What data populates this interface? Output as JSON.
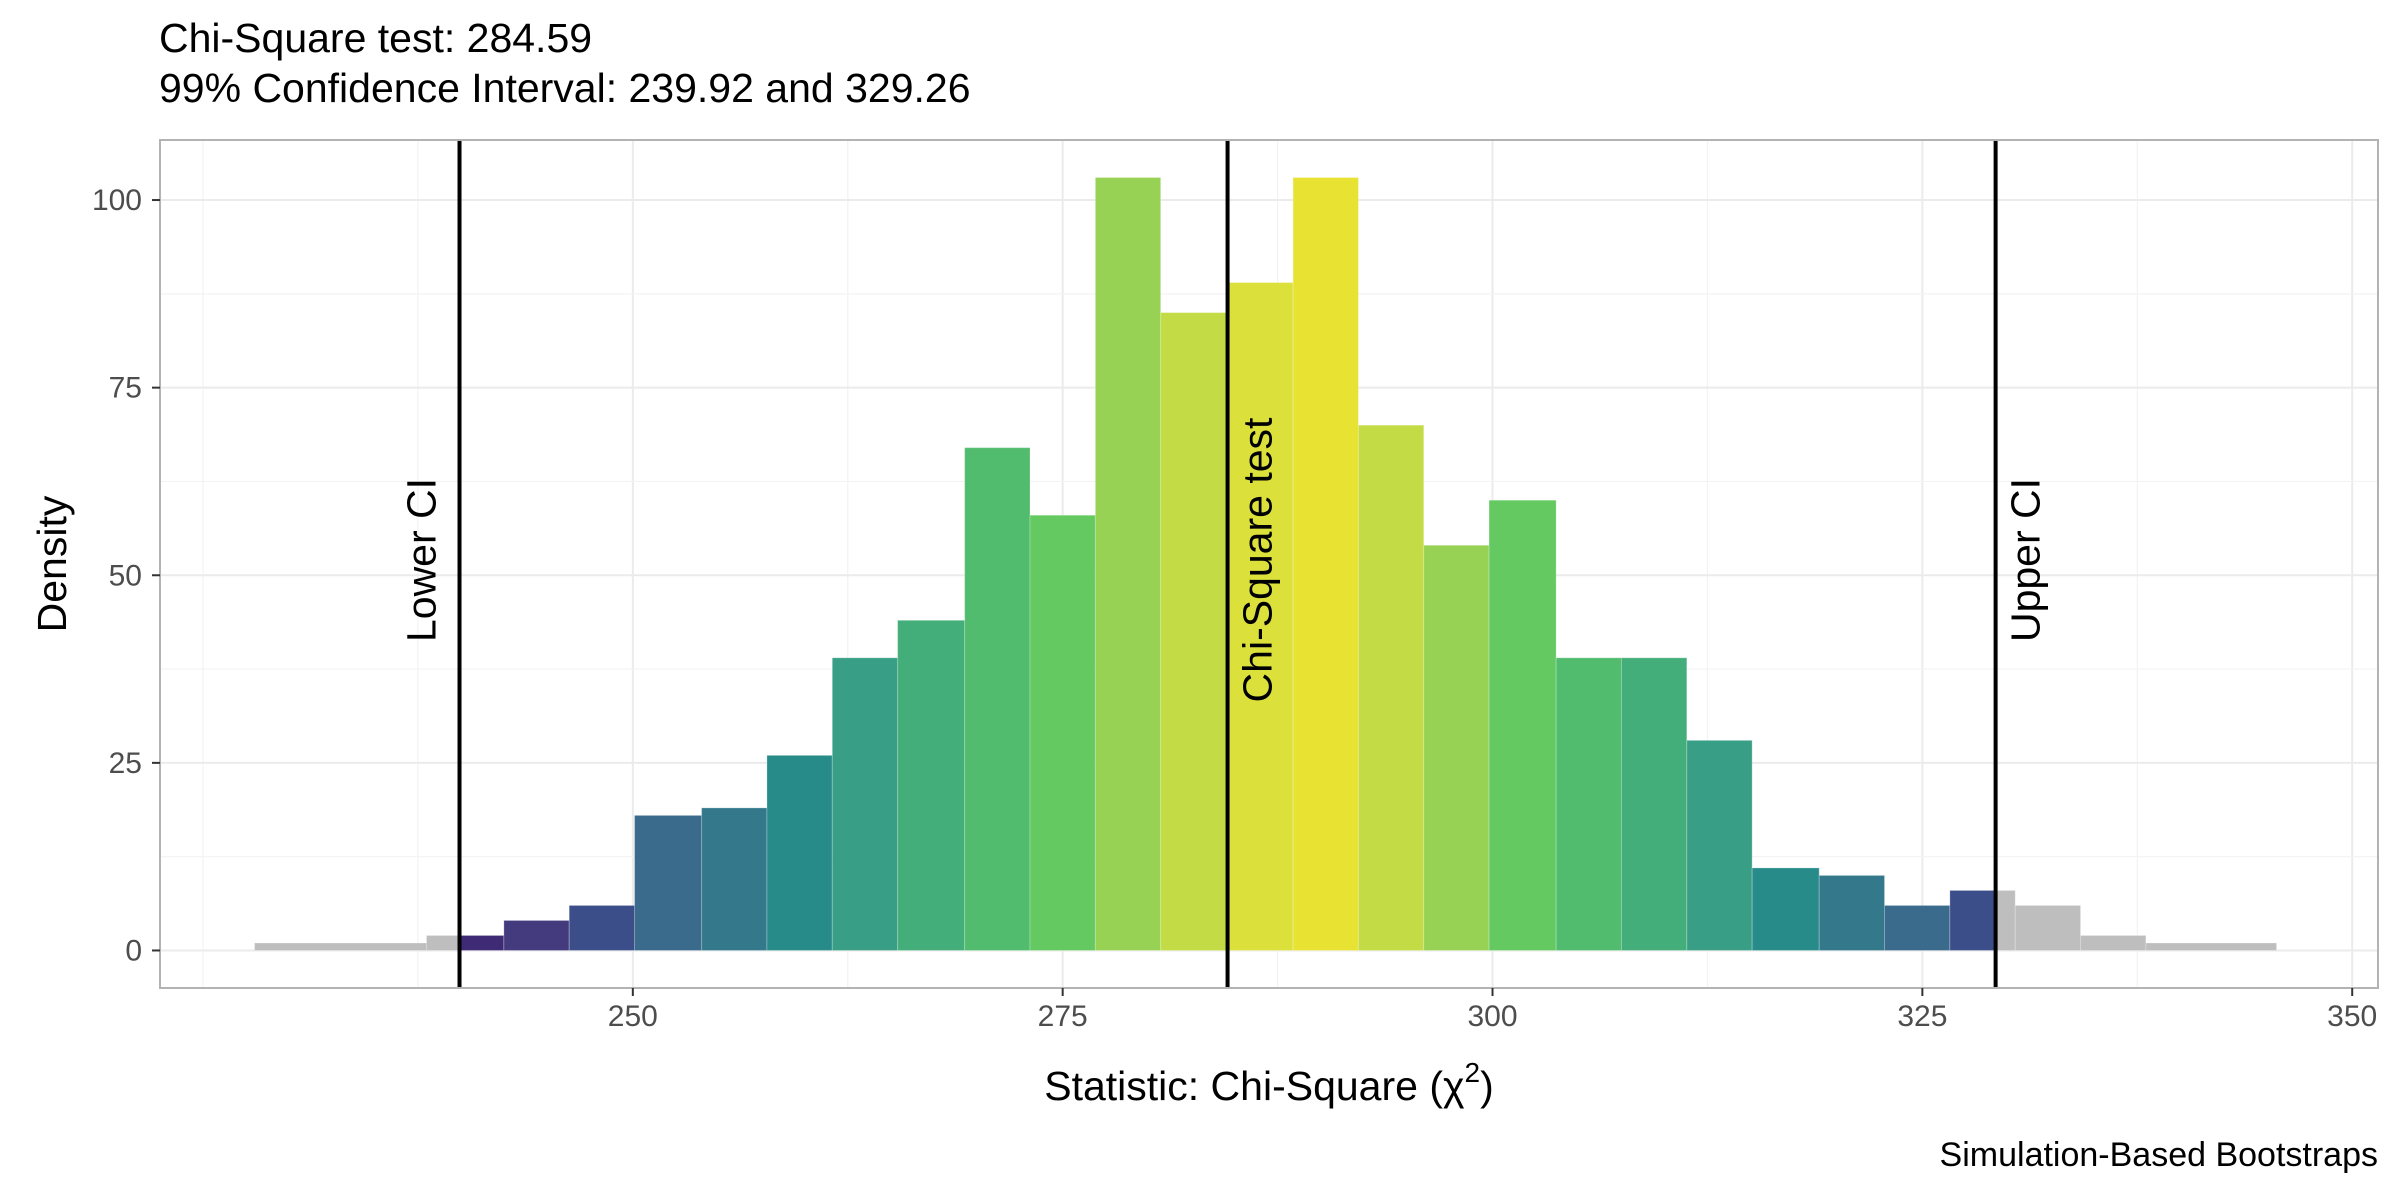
{
  "chart_data": {
    "type": "bar",
    "title": "Chi-Square test: 284.59",
    "subtitle": "99% Confidence Interval: 239.92 and 329.26",
    "caption": "Simulation-Based Bootstraps",
    "xlabel_main": "Statistic: Chi-Square (",
    "xlabel_symbol": "χ",
    "xlabel_sup": "2",
    "xlabel_close": ")",
    "ylabel": "Density",
    "xlim": [
      222.5,
      351.5
    ],
    "ylim": [
      -5,
      108
    ],
    "x_ticks": [
      250,
      275,
      300,
      325,
      350
    ],
    "y_ticks": [
      0,
      25,
      50,
      75,
      100
    ],
    "grid": true,
    "bins": [
      {
        "x0": 228.0,
        "x1": 238.0,
        "value": 1,
        "color": "#bebebe"
      },
      {
        "x0": 238.0,
        "x1": 240.0,
        "value": 2,
        "color": "#bebebe"
      },
      {
        "x0": 240.0,
        "x1": 242.5,
        "value": 2,
        "color": "#3e2a75"
      },
      {
        "x0": 242.5,
        "x1": 246.3,
        "value": 4,
        "color": "#433b7e"
      },
      {
        "x0": 246.3,
        "x1": 250.1,
        "value": 6,
        "color": "#3c4e89"
      },
      {
        "x0": 250.1,
        "x1": 254.0,
        "value": 18,
        "color": "#3a6a8c"
      },
      {
        "x0": 254.0,
        "x1": 257.8,
        "value": 19,
        "color": "#33798b"
      },
      {
        "x0": 257.8,
        "x1": 261.6,
        "value": 26,
        "color": "#268b89"
      },
      {
        "x0": 261.6,
        "x1": 265.4,
        "value": 39,
        "color": "#389f86"
      },
      {
        "x0": 265.4,
        "x1": 269.3,
        "value": 44,
        "color": "#44ae7a"
      },
      {
        "x0": 269.3,
        "x1": 273.1,
        "value": 67,
        "color": "#52bc6e"
      },
      {
        "x0": 273.1,
        "x1": 276.9,
        "value": 58,
        "color": "#63c960"
      },
      {
        "x0": 276.9,
        "x1": 280.7,
        "value": 103,
        "color": "#97d254"
      },
      {
        "x0": 280.7,
        "x1": 284.59,
        "value": 85,
        "color": "#c3db45"
      },
      {
        "x0": 284.59,
        "x1": 288.4,
        "value": 89,
        "color": "#dbe03a"
      },
      {
        "x0": 288.4,
        "x1": 292.2,
        "value": 103,
        "color": "#e8e233"
      },
      {
        "x0": 292.2,
        "x1": 296.0,
        "value": 70,
        "color": "#c3db45"
      },
      {
        "x0": 296.0,
        "x1": 299.8,
        "value": 54,
        "color": "#97d254"
      },
      {
        "x0": 299.8,
        "x1": 303.7,
        "value": 60,
        "color": "#63c960"
      },
      {
        "x0": 303.7,
        "x1": 307.5,
        "value": 39,
        "color": "#52bc6e"
      },
      {
        "x0": 307.5,
        "x1": 311.3,
        "value": 39,
        "color": "#44ae7a"
      },
      {
        "x0": 311.3,
        "x1": 315.1,
        "value": 28,
        "color": "#389f86"
      },
      {
        "x0": 315.1,
        "x1": 319.0,
        "value": 11,
        "color": "#268b89"
      },
      {
        "x0": 319.0,
        "x1": 322.8,
        "value": 10,
        "color": "#33798b"
      },
      {
        "x0": 322.8,
        "x1": 326.6,
        "value": 6,
        "color": "#3a6a8c"
      },
      {
        "x0": 326.6,
        "x1": 329.26,
        "value": 8,
        "color": "#3c4e89"
      },
      {
        "x0": 329.26,
        "x1": 330.4,
        "value": 8,
        "color": "#bebebe"
      },
      {
        "x0": 330.4,
        "x1": 334.2,
        "value": 6,
        "color": "#bebebe"
      },
      {
        "x0": 334.2,
        "x1": 338.0,
        "value": 2,
        "color": "#bebebe"
      },
      {
        "x0": 338.0,
        "x1": 345.6,
        "value": 1,
        "color": "#bebebe"
      }
    ],
    "vlines": [
      {
        "x": 239.92,
        "label": "Lower CI",
        "label_side": "left"
      },
      {
        "x": 284.59,
        "label": "Chi-Square test",
        "label_side": "right"
      },
      {
        "x": 329.26,
        "label": "Upper CI",
        "label_side": "right"
      }
    ]
  }
}
